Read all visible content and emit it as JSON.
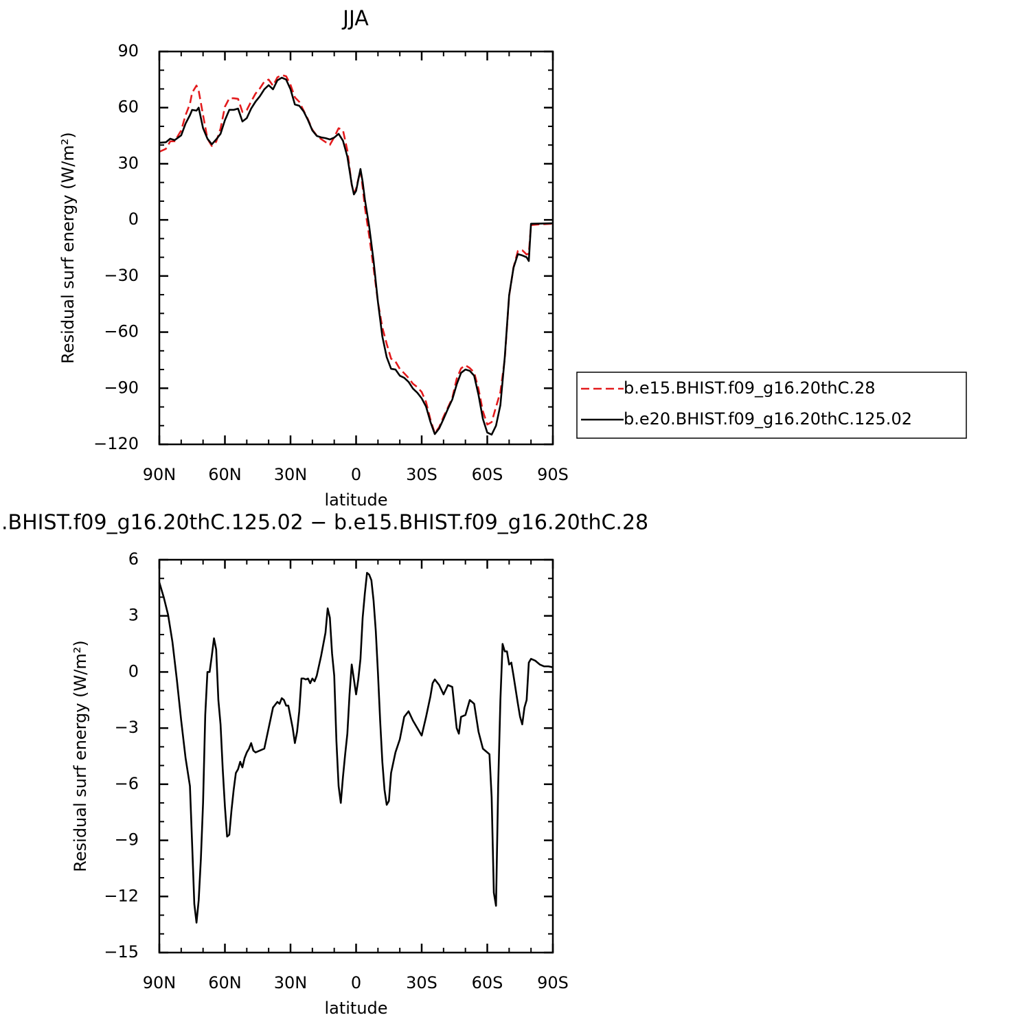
{
  "chart_data": [
    {
      "type": "line",
      "title": "JJA",
      "xlabel": "latitude",
      "ylabel": "Residual surf energy (W/m²)",
      "xlim": [
        90,
        -90
      ],
      "xticks": [
        {
          "value": 90,
          "label": "90N"
        },
        {
          "value": 60,
          "label": "60N"
        },
        {
          "value": 30,
          "label": "30N"
        },
        0,
        {
          "value": -30,
          "label": "30S"
        },
        {
          "value": -60,
          "label": "60S"
        },
        {
          "value": -90,
          "label": "90S"
        }
      ],
      "ylim": [
        -120,
        90
      ],
      "yticks": [
        90,
        60,
        30,
        0,
        {
          "value": -30,
          "label": "−30"
        },
        {
          "value": -60,
          "label": "−60"
        },
        {
          "value": -90,
          "label": "−90"
        },
        {
          "value": -120,
          "label": "−120"
        }
      ],
      "legend": "right",
      "x": [
        90,
        87,
        85,
        83,
        80,
        78,
        76,
        75,
        73,
        72,
        70,
        68,
        66,
        64,
        62,
        60,
        58,
        56,
        54,
        52,
        50,
        48,
        46,
        44,
        42,
        40,
        38,
        36,
        34,
        32,
        30,
        28,
        26,
        24,
        22,
        20,
        18,
        16,
        14,
        12,
        10,
        8,
        6,
        4,
        2,
        1,
        0,
        -1,
        -2,
        -3,
        -4,
        -6,
        -8,
        -10,
        -12,
        -14,
        -16,
        -18,
        -20,
        -22,
        -24,
        -26,
        -28,
        -30,
        -32,
        -34,
        -36,
        -38,
        -40,
        -42,
        -44,
        -46,
        -48,
        -50,
        -52,
        -54,
        -56,
        -58,
        -60,
        -62,
        -64,
        -66,
        -68,
        -70,
        -72,
        -74,
        -76,
        -78,
        -79,
        -80,
        -84,
        -90
      ],
      "series": [
        {
          "name": "b.e15.BHIST.f09_g16.20thC.28",
          "color": "#e31a1c",
          "style": "dashed",
          "values": [
            36.4,
            38,
            42,
            42,
            47.8,
            56,
            62,
            68,
            71.8,
            69,
            56,
            43.4,
            39.5,
            41.8,
            48.8,
            60.5,
            65,
            65,
            64.7,
            57.7,
            58.7,
            63.3,
            67.5,
            70.3,
            73.9,
            75,
            71.7,
            76.2,
            77.4,
            76.8,
            72.2,
            65.5,
            63.1,
            58.4,
            53.7,
            48.2,
            45.1,
            43.2,
            41.6,
            40.1,
            44.2,
            49,
            47.9,
            37.1,
            18.7,
            14,
            16.7,
            21.8,
            26.5,
            17.4,
            6.8,
            -8.8,
            -25.8,
            -44,
            -57.5,
            -66.3,
            -74.2,
            -75.7,
            -79.7,
            -82,
            -84.5,
            -87.6,
            -89.4,
            -92,
            -97.4,
            -106.7,
            -114.1,
            -110.8,
            -105.2,
            -100.3,
            -95.2,
            -85,
            -79.4,
            -77.7,
            -79.2,
            -81.6,
            -90.4,
            -102.3,
            -109.4,
            -108.1,
            -100,
            -92,
            -74.5,
            -40.7,
            -25.4,
            -16.6,
            -16.2,
            -18.5,
            -18,
            -2.8,
            -2.4,
            -2.05
          ]
        },
        {
          "name": "b.e20.BHIST.f09_g16.20thC.125.02",
          "color": "#000000",
          "style": "solid",
          "values": [
            41.2,
            41.5,
            43.4,
            42.6,
            45.2,
            51.5,
            56,
            58.8,
            58.4,
            60,
            49,
            43.4,
            40.4,
            43,
            46,
            53.3,
            58.8,
            58.8,
            59.5,
            52.6,
            54.4,
            59.5,
            63.2,
            66.1,
            69.8,
            72,
            69.8,
            74.6,
            76,
            75,
            69.8,
            61.7,
            61,
            58,
            53.3,
            47.8,
            44.9,
            44.1,
            43.7,
            43,
            44,
            46,
            42.3,
            33.8,
            19.1,
            13.6,
            15.5,
            21.4,
            27.2,
            20.3,
            11,
            -3.6,
            -22,
            -44,
            -62.3,
            -73.4,
            -79.6,
            -80,
            -83.3,
            -84.4,
            -86.6,
            -90.2,
            -92.4,
            -95.4,
            -99.8,
            -108,
            -114.5,
            -111.5,
            -106.4,
            -101,
            -96,
            -88,
            -81.8,
            -80,
            -80.7,
            -83.3,
            -93.6,
            -106.4,
            -113.7,
            -114.8,
            -110,
            -99,
            -73.4,
            -40.3,
            -25.6,
            -18.3,
            -19,
            -20,
            -22,
            -2.1,
            -2,
            -1.8
          ]
        }
      ]
    },
    {
      "type": "line",
      "title": ".BHIST.f09_g16.20thC.125.02 − b.e15.BHIST.f09_g16.20thC.28",
      "xlabel": "latitude",
      "ylabel": "Residual surf energy (W/m²)",
      "xlim": [
        90,
        -90
      ],
      "xticks": [
        {
          "value": 90,
          "label": "90N"
        },
        {
          "value": 60,
          "label": "60N"
        },
        {
          "value": 30,
          "label": "30N"
        },
        0,
        {
          "value": -30,
          "label": "30S"
        },
        {
          "value": -60,
          "label": "60S"
        },
        {
          "value": -90,
          "label": "90S"
        }
      ],
      "ylim": [
        -15,
        6
      ],
      "yticks": [
        6,
        3,
        0,
        {
          "value": -3,
          "label": "−3"
        },
        {
          "value": -6,
          "label": "−6"
        },
        {
          "value": -9,
          "label": "−9"
        },
        {
          "value": -12,
          "label": "−12"
        },
        {
          "value": -15,
          "label": "−15"
        }
      ],
      "x": [
        90,
        88,
        86,
        84,
        82,
        80,
        78,
        76,
        75,
        74,
        73,
        72,
        71,
        70,
        69,
        68,
        67,
        66,
        65,
        64,
        63,
        62,
        61,
        60,
        59,
        58,
        57,
        56,
        55,
        54,
        53,
        52,
        51,
        50,
        49,
        48,
        47,
        46,
        44,
        42,
        40,
        38,
        36,
        35,
        34,
        33,
        32,
        31,
        30,
        29,
        28,
        27,
        26,
        25,
        24,
        23,
        22,
        21,
        20,
        19,
        18,
        16,
        14,
        13,
        12,
        11,
        10,
        9,
        8,
        7,
        6,
        5,
        4,
        3,
        2,
        1,
        0,
        -1,
        -2,
        -3,
        -4,
        -5,
        -6,
        -7,
        -8,
        -9,
        -10,
        -11,
        -12,
        -13,
        -14,
        -15,
        -16,
        -18,
        -20,
        -22,
        -24,
        -26,
        -28,
        -30,
        -32,
        -34,
        -35,
        -36,
        -38,
        -40,
        -42,
        -44,
        -46,
        -47,
        -48,
        -50,
        -52,
        -54,
        -56,
        -58,
        -60,
        -61,
        -62,
        -63,
        -64,
        -65,
        -66,
        -67,
        -68,
        -69,
        -70,
        -71,
        -72,
        -74,
        -75,
        -76,
        -77,
        -78,
        -79,
        -80,
        -82,
        -84,
        -86,
        -88,
        -90
      ],
      "series": [
        {
          "color": "#000000",
          "style": "solid",
          "values": [
            4.79,
            4.0,
            3.06,
            1.6,
            -0.4,
            -2.6,
            -4.6,
            -6.1,
            -9.2,
            -12.4,
            -13.4,
            -12.2,
            -10,
            -7,
            -2.3,
            0,
            0,
            0.86,
            1.8,
            1.2,
            -1.5,
            -2.8,
            -5.2,
            -7.2,
            -8.8,
            -8.7,
            -7.4,
            -6.3,
            -5.4,
            -5.2,
            -4.8,
            -5.1,
            -4.6,
            -4.3,
            -4.1,
            -3.8,
            -4.2,
            -4.3,
            -4.2,
            -4.1,
            -3,
            -1.9,
            -1.6,
            -1.7,
            -1.4,
            -1.5,
            -1.8,
            -1.8,
            -2.4,
            -3,
            -3.8,
            -3.2,
            -2.1,
            -0.35,
            -0.35,
            -0.4,
            -0.35,
            -0.6,
            -0.35,
            -0.5,
            -0.2,
            0.86,
            2.1,
            3.4,
            2.9,
            1.0,
            -0.2,
            -3.7,
            -6.1,
            -7,
            -5.6,
            -4.4,
            -3.3,
            -1.2,
            0.4,
            -0.4,
            -1.2,
            -0.4,
            0.7,
            2.9,
            4.2,
            5.3,
            5.2,
            4.9,
            3.8,
            2.2,
            -0.06,
            -2.6,
            -4.8,
            -6.3,
            -7.1,
            -6.9,
            -5.4,
            -4.3,
            -3.6,
            -2.4,
            -2.1,
            -2.6,
            -3,
            -3.4,
            -2.4,
            -1.3,
            -0.6,
            -0.4,
            -0.7,
            -1.2,
            -0.7,
            -0.8,
            -3,
            -3.3,
            -2.4,
            -2.3,
            -1.5,
            -1.7,
            -3.2,
            -4.1,
            -4.3,
            -4.4,
            -6.7,
            -11.8,
            -12.5,
            -6.0,
            -1.5,
            1.5,
            1.1,
            1.1,
            0.4,
            0.5,
            -0.2,
            -1.7,
            -2.4,
            -2.8,
            -1.9,
            -1.5,
            0.5,
            0.7,
            0.6,
            0.4,
            0.3,
            0.3,
            0.25
          ]
        }
      ]
    }
  ]
}
